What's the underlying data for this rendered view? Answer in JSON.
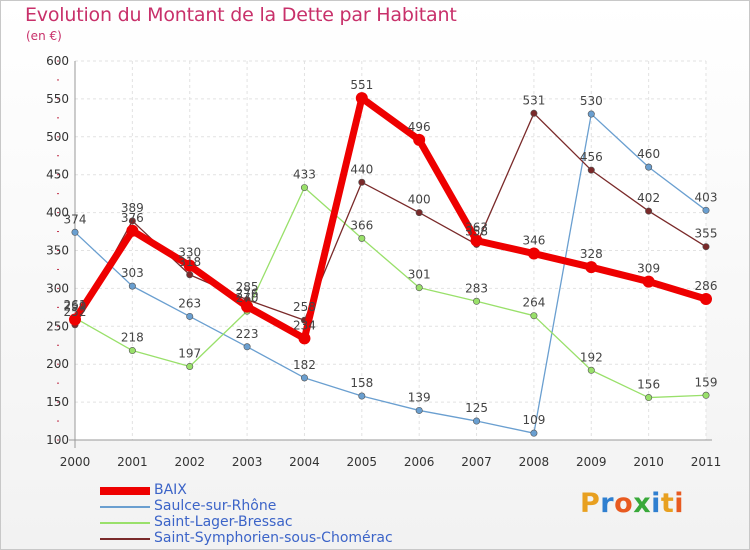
{
  "header": {
    "title": "Evolution du Montant de la Dette par Habitant",
    "subtitle": "(en €)"
  },
  "legend": {
    "items": [
      {
        "label": "BAIX",
        "color": "#ee0000"
      },
      {
        "label": "Saulce-sur-Rhône",
        "color": "#6a9fd0"
      },
      {
        "label": "Saint-Lager-Bressac",
        "color": "#99e06a"
      },
      {
        "label": "Saint-Symphorien-sous-Chomérac",
        "color": "#7a2a2a"
      }
    ]
  },
  "logo": {
    "letters": [
      "P",
      "r",
      "o",
      "x",
      "i",
      "t",
      "i"
    ],
    "colors": [
      "#e8a020",
      "#2f7fd0",
      "#e85a20",
      "#39a93a",
      "#2f7fd0",
      "#e8a020",
      "#e85a20"
    ]
  },
  "chart_data": {
    "type": "line",
    "x": [
      "2000",
      "2001",
      "2002",
      "2003",
      "2004",
      "2005",
      "2006",
      "2007",
      "2008",
      "2009",
      "2010",
      "2011"
    ],
    "ylim": [
      100,
      600
    ],
    "yticks": [
      "100",
      "150",
      "200",
      "250",
      "300",
      "350",
      "400",
      "450",
      "500",
      "550",
      "600"
    ],
    "grid": true,
    "series": [
      {
        "name": "BAIX",
        "color": "#ee0000",
        "values": [
          259,
          376,
          330,
          276,
          234,
          551,
          496,
          363,
          346,
          328,
          309,
          286
        ]
      },
      {
        "name": "Saulce-sur-Rhône",
        "color": "#6a9fd0",
        "values": [
          374,
          303,
          263,
          223,
          182,
          158,
          139,
          125,
          109,
          530,
          460,
          403
        ]
      },
      {
        "name": "Saint-Lager-Bressac",
        "color": "#99e06a",
        "values": [
          261,
          218,
          197,
          270,
          433,
          366,
          301,
          283,
          264,
          192,
          156,
          159
        ]
      },
      {
        "name": "Saint-Symphorien-sous-Chomérac",
        "color": "#7a2a2a",
        "values": [
          252,
          389,
          318,
          285,
          258,
          440,
          400,
          358,
          531,
          456,
          402,
          355
        ]
      }
    ]
  }
}
